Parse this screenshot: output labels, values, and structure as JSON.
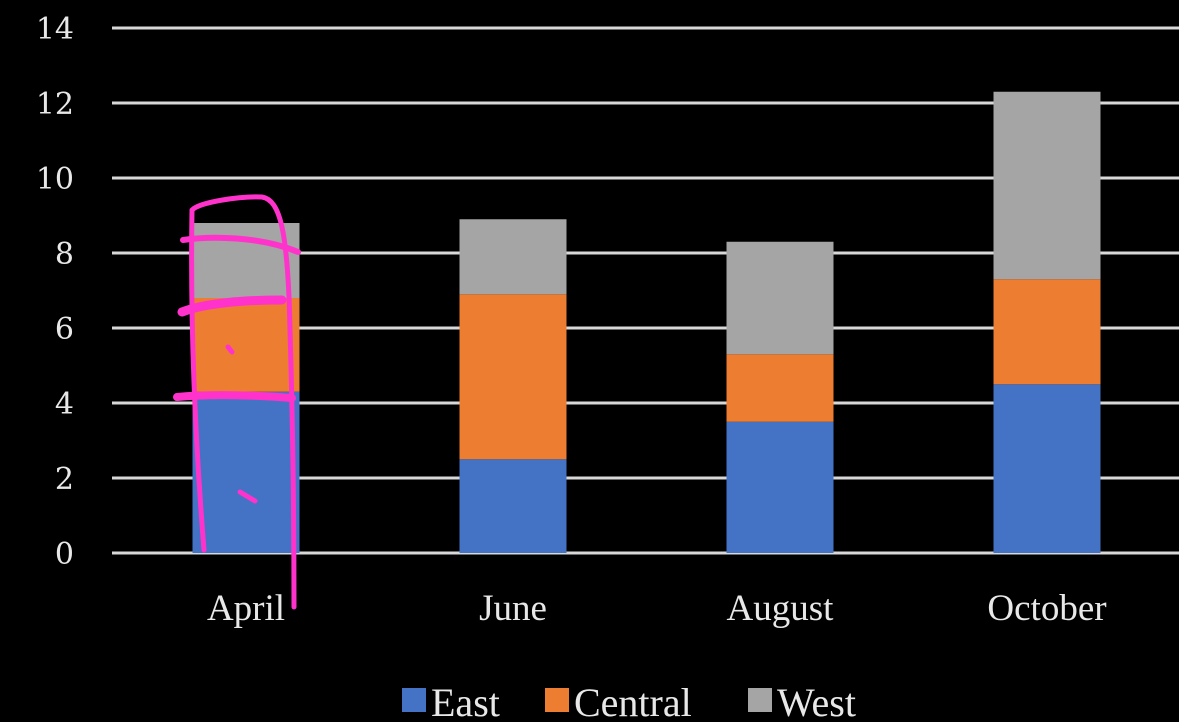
{
  "chart_data": {
    "type": "bar",
    "stacked": true,
    "categories": [
      "April",
      "June",
      "August",
      "October"
    ],
    "series": [
      {
        "name": "East",
        "values": [
          4.3,
          2.5,
          3.5,
          4.5
        ],
        "color": "#4472C4"
      },
      {
        "name": "Central",
        "values": [
          2.5,
          4.4,
          1.8,
          2.8
        ],
        "color": "#ED7D31"
      },
      {
        "name": "West",
        "values": [
          2.0,
          2.0,
          3.0,
          5.0
        ],
        "color": "#A5A5A5"
      }
    ],
    "ylim": [
      0,
      14
    ],
    "yticks": [
      "0",
      "2",
      "4",
      "6",
      "8",
      "10",
      "12",
      "14"
    ],
    "grid": true,
    "legend_position": "bottom",
    "background": "#000000",
    "annotation_color": "#ff33cc"
  }
}
